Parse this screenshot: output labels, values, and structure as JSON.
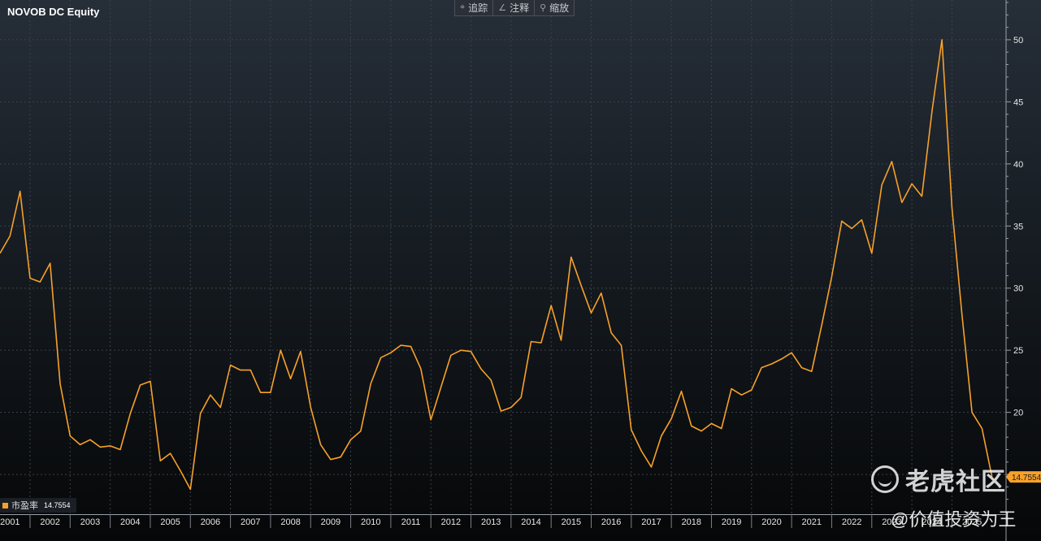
{
  "title": "NOVOB DC Equity",
  "toolbar": {
    "items": [
      {
        "icon": "crosshair-icon",
        "glyph": "⌖",
        "label": "追踪"
      },
      {
        "icon": "pencil-icon",
        "glyph": "∠",
        "label": "注释"
      },
      {
        "icon": "magnifier-icon",
        "glyph": "⚲",
        "label": "缩放"
      }
    ]
  },
  "legend": {
    "label": "市盈率",
    "value": "14.7554"
  },
  "watermark": {
    "brand": "老虎社区",
    "handle": "@价值投资为王"
  },
  "colors": {
    "line": "#f7a12a",
    "tag": "#f7a12a"
  },
  "chart_data": {
    "type": "line",
    "title": "NOVOB DC Equity",
    "xlabel": "",
    "ylabel": "",
    "xlim": [
      2000.75,
      2025.85
    ],
    "ylim": [
      11.8,
      53.2
    ],
    "y_ticks": [
      20,
      25,
      30,
      35,
      40,
      45,
      50
    ],
    "x_tick_labels": [
      "2001",
      "2002",
      "2003",
      "2004",
      "2005",
      "2006",
      "2007",
      "2008",
      "2009",
      "2010",
      "2011",
      "2012",
      "2013",
      "2014",
      "2015",
      "2016",
      "2017",
      "2018",
      "2019",
      "2020",
      "2021",
      "2022",
      "2023",
      "2024",
      "2025"
    ],
    "x_ticks": [
      2001,
      2002,
      2003,
      2004,
      2005,
      2006,
      2007,
      2008,
      2009,
      2010,
      2011,
      2012,
      2013,
      2014,
      2015,
      2016,
      2017,
      2018,
      2019,
      2020,
      2021,
      2022,
      2023,
      2024,
      2025
    ],
    "grid": true,
    "legend_position": "bottom-left",
    "series": [
      {
        "name": "市盈率",
        "last_value_label": "14.7554",
        "x": [
          2000.75,
          2001.0,
          2001.25,
          2001.5,
          2001.75,
          2002.0,
          2002.25,
          2002.5,
          2002.75,
          2003.0,
          2003.25,
          2003.5,
          2003.75,
          2004.0,
          2004.25,
          2004.5,
          2004.75,
          2005.0,
          2005.25,
          2005.5,
          2005.75,
          2006.0,
          2006.25,
          2006.5,
          2006.75,
          2007.0,
          2007.25,
          2007.5,
          2007.75,
          2008.0,
          2008.25,
          2008.5,
          2008.75,
          2009.0,
          2009.25,
          2009.5,
          2009.75,
          2010.0,
          2010.25,
          2010.5,
          2010.75,
          2011.0,
          2011.25,
          2011.5,
          2011.75,
          2012.0,
          2012.25,
          2012.5,
          2012.75,
          2013.0,
          2013.25,
          2013.5,
          2013.75,
          2014.0,
          2014.25,
          2014.5,
          2014.75,
          2015.0,
          2015.25,
          2015.5,
          2015.75,
          2016.0,
          2016.25,
          2016.5,
          2016.75,
          2017.0,
          2017.25,
          2017.5,
          2017.75,
          2018.0,
          2018.25,
          2018.5,
          2018.75,
          2019.0,
          2019.25,
          2019.5,
          2019.75,
          2020.0,
          2020.25,
          2020.5,
          2020.75,
          2021.0,
          2021.25,
          2021.5,
          2021.75,
          2022.0,
          2022.25,
          2022.5,
          2022.75,
          2023.0,
          2023.25,
          2023.5,
          2023.75,
          2024.0,
          2024.25,
          2024.5,
          2024.75,
          2025.0,
          2025.25,
          2025.5
        ],
        "values": [
          32.8,
          34.2,
          37.8,
          30.8,
          30.5,
          32.0,
          22.3,
          18.1,
          17.4,
          17.8,
          17.2,
          17.3,
          17.0,
          19.9,
          22.2,
          22.5,
          16.1,
          16.7,
          15.3,
          13.8,
          19.9,
          21.4,
          20.4,
          23.8,
          23.4,
          23.4,
          21.6,
          21.6,
          25.0,
          22.7,
          24.9,
          20.4,
          17.4,
          16.2,
          16.4,
          17.8,
          18.5,
          22.3,
          24.4,
          24.8,
          25.4,
          25.3,
          23.5,
          19.4,
          22.0,
          24.6,
          25.0,
          24.9,
          23.5,
          22.6,
          20.1,
          20.4,
          21.2,
          25.7,
          25.6,
          28.6,
          25.8,
          32.5,
          30.2,
          28.0,
          29.6,
          26.4,
          25.4,
          18.6,
          16.9,
          15.6,
          18.1,
          19.5,
          21.7,
          18.9,
          18.5,
          19.1,
          18.7,
          21.9,
          21.4,
          21.8,
          23.6,
          23.9,
          24.3,
          24.8,
          23.6,
          23.3,
          27.0,
          30.9,
          35.4,
          34.8,
          35.5,
          32.8,
          38.3,
          40.2,
          36.9,
          38.4,
          37.4,
          44.2,
          50.0,
          36.5,
          27.9,
          20.0,
          18.7,
          14.8
        ]
      }
    ]
  }
}
